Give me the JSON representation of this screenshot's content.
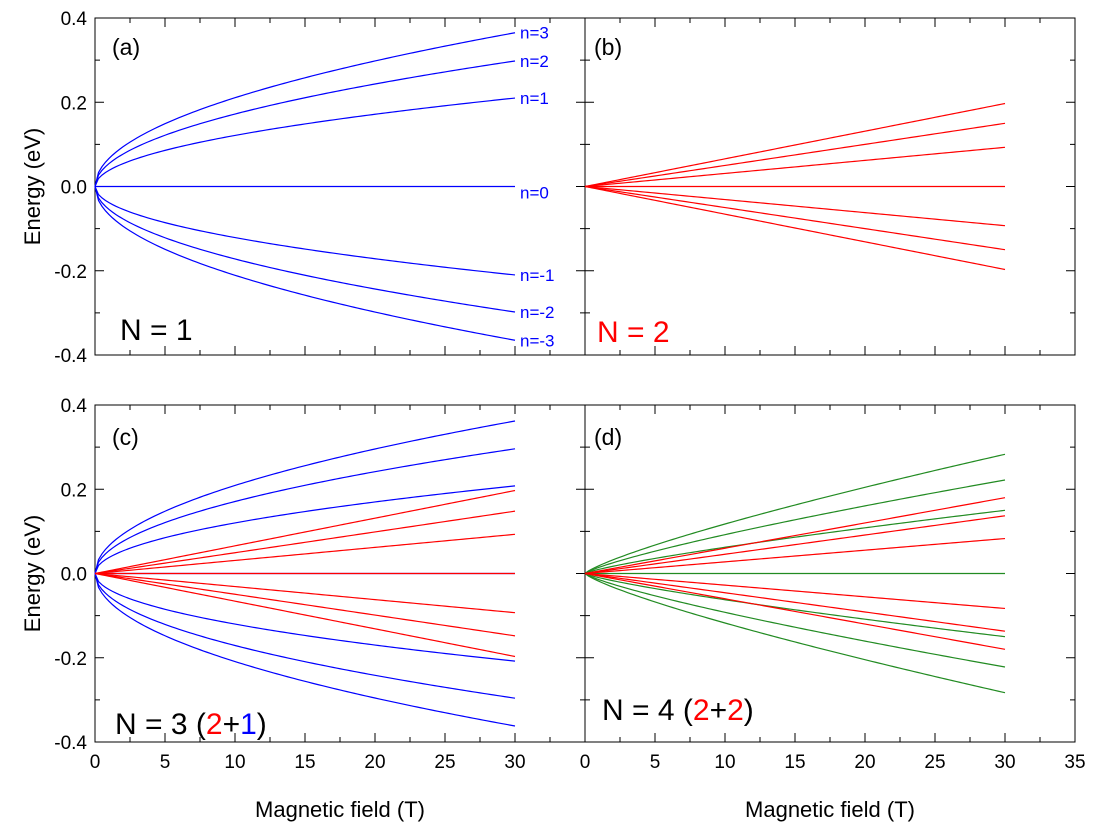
{
  "chart_data": [
    {
      "type": "line",
      "panel": "(a)",
      "annotation": [
        {
          "text": "N = 1",
          "color": "#000000"
        }
      ],
      "ylabel": "Energy (eV)",
      "xlabel": "",
      "xlim": [
        0,
        35
      ],
      "ylim": [
        -0.4,
        0.4
      ],
      "x_ticks": [
        0,
        5,
        10,
        15,
        20,
        25,
        30,
        35
      ],
      "y_ticks": [
        "0.4",
        "0.2",
        "0.0",
        "-0.2",
        "-0.4"
      ],
      "x_tick_labels": [],
      "y_tick_labels": [
        "0.4",
        "0.2",
        "0.0",
        "-0.2",
        "-0.4"
      ],
      "series": [
        {
          "label": "n=3",
          "color": "#0000ff",
          "law": "sqrt",
          "value_at_30T": 0.365
        },
        {
          "label": "n=2",
          "color": "#0000ff",
          "law": "sqrt",
          "value_at_30T": 0.298
        },
        {
          "label": "n=1",
          "color": "#0000ff",
          "law": "sqrt",
          "value_at_30T": 0.21
        },
        {
          "label": "n=0",
          "color": "#0000ff",
          "law": "sqrt",
          "value_at_30T": 0.0
        },
        {
          "label": "n=-1",
          "color": "#0000ff",
          "law": "sqrt",
          "value_at_30T": -0.21
        },
        {
          "label": "n=-2",
          "color": "#0000ff",
          "law": "sqrt",
          "value_at_30T": -0.298
        },
        {
          "label": "n=-3",
          "color": "#0000ff",
          "law": "sqrt",
          "value_at_30T": -0.365
        }
      ]
    },
    {
      "type": "line",
      "panel": "(b)",
      "annotation": [
        {
          "text": "N = 2",
          "color": "#ff0000"
        }
      ],
      "ylabel": "",
      "xlabel": "",
      "xlim": [
        0,
        35
      ],
      "ylim": [
        -0.4,
        0.4
      ],
      "x_ticks": [
        0,
        5,
        10,
        15,
        20,
        25,
        30,
        35
      ],
      "y_ticks": [
        "0.4",
        "0.2",
        "0.0",
        "-0.2",
        "-0.4"
      ],
      "x_tick_labels": [],
      "y_tick_labels": [],
      "series": [
        {
          "color": "#ff0000",
          "law": "linear",
          "value_at_30T": 0.197
        },
        {
          "color": "#ff0000",
          "law": "linear",
          "value_at_30T": 0.15
        },
        {
          "color": "#ff0000",
          "law": "linear",
          "value_at_30T": 0.093
        },
        {
          "color": "#ff0000",
          "law": "linear",
          "value_at_30T": 0.0
        },
        {
          "color": "#ff0000",
          "law": "linear",
          "value_at_30T": -0.093
        },
        {
          "color": "#ff0000",
          "law": "linear",
          "value_at_30T": -0.15
        },
        {
          "color": "#ff0000",
          "law": "linear",
          "value_at_30T": -0.197
        }
      ]
    },
    {
      "type": "line",
      "panel": "(c)",
      "annotation": [
        {
          "text": "N = 3 (",
          "color": "#000000"
        },
        {
          "text": "2",
          "color": "#ff0000"
        },
        {
          "text": "+",
          "color": "#000000"
        },
        {
          "text": "1",
          "color": "#0000ff"
        },
        {
          "text": ")",
          "color": "#000000"
        }
      ],
      "ylabel": "Energy (eV)",
      "xlabel": "Magnetic field (T)",
      "xlim": [
        0,
        35
      ],
      "ylim": [
        -0.4,
        0.4
      ],
      "x_ticks": [
        0,
        5,
        10,
        15,
        20,
        25,
        30,
        35
      ],
      "y_ticks": [
        "0.4",
        "0.2",
        "0.0",
        "-0.2",
        "-0.4"
      ],
      "x_tick_labels": [
        "0",
        "5",
        "10",
        "15",
        "20",
        "25",
        "30"
      ],
      "y_tick_labels": [
        "0.4",
        "0.2",
        "0.0",
        "-0.2",
        "-0.4"
      ],
      "series": [
        {
          "color": "#0000ff",
          "law": "sqrt",
          "value_at_30T": 0.362
        },
        {
          "color": "#0000ff",
          "law": "sqrt",
          "value_at_30T": 0.296
        },
        {
          "color": "#0000ff",
          "law": "sqrt",
          "value_at_30T": 0.208
        },
        {
          "color": "#0000ff",
          "law": "sqrt",
          "value_at_30T": 0.0
        },
        {
          "color": "#0000ff",
          "law": "sqrt",
          "value_at_30T": -0.208
        },
        {
          "color": "#0000ff",
          "law": "sqrt",
          "value_at_30T": -0.296
        },
        {
          "color": "#0000ff",
          "law": "sqrt",
          "value_at_30T": -0.362
        },
        {
          "color": "#ff0000",
          "law": "linear",
          "value_at_30T": 0.197
        },
        {
          "color": "#ff0000",
          "law": "linear",
          "value_at_30T": 0.148
        },
        {
          "color": "#ff0000",
          "law": "linear",
          "value_at_30T": 0.093
        },
        {
          "color": "#ff0000",
          "law": "linear",
          "value_at_30T": 0.0
        },
        {
          "color": "#ff0000",
          "law": "linear",
          "value_at_30T": -0.093
        },
        {
          "color": "#ff0000",
          "law": "linear",
          "value_at_30T": -0.148
        },
        {
          "color": "#ff0000",
          "law": "linear",
          "value_at_30T": -0.197
        }
      ]
    },
    {
      "type": "line",
      "panel": "(d)",
      "annotation": [
        {
          "text": "N = 4 (",
          "color": "#000000"
        },
        {
          "text": "2",
          "color": "#ff0000"
        },
        {
          "text": "+",
          "color": "#000000"
        },
        {
          "text": "2",
          "color": "#ff0000"
        },
        {
          "text": ")",
          "color": "#000000"
        }
      ],
      "ylabel": "",
      "xlabel": "Magnetic field (T)",
      "xlim": [
        0,
        35
      ],
      "ylim": [
        -0.4,
        0.4
      ],
      "x_ticks": [
        0,
        5,
        10,
        15,
        20,
        25,
        30,
        35
      ],
      "y_ticks": [
        "0.4",
        "0.2",
        "0.0",
        "-0.2",
        "-0.4"
      ],
      "x_tick_labels": [
        "0",
        "5",
        "10",
        "15",
        "20",
        "25",
        "30",
        "35"
      ],
      "y_tick_labels": [],
      "series": [
        {
          "color": "#228b22",
          "law": "sublinear",
          "value_at_30T": 0.283
        },
        {
          "color": "#228b22",
          "law": "sublinear",
          "value_at_30T": 0.222
        },
        {
          "color": "#228b22",
          "law": "sublinear",
          "value_at_30T": 0.15
        },
        {
          "color": "#228b22",
          "law": "sublinear",
          "value_at_30T": 0.0
        },
        {
          "color": "#228b22",
          "law": "sublinear",
          "value_at_30T": -0.15
        },
        {
          "color": "#228b22",
          "law": "sublinear",
          "value_at_30T": -0.222
        },
        {
          "color": "#228b22",
          "law": "sublinear",
          "value_at_30T": -0.283
        },
        {
          "color": "#ff0000",
          "law": "linear",
          "value_at_30T": 0.18
        },
        {
          "color": "#ff0000",
          "law": "linear",
          "value_at_30T": 0.137
        },
        {
          "color": "#ff0000",
          "law": "linear",
          "value_at_30T": 0.083
        },
        {
          "color": "#ff0000",
          "law": "linear",
          "value_at_30T": -0.083
        },
        {
          "color": "#ff0000",
          "law": "linear",
          "value_at_30T": -0.137
        },
        {
          "color": "#ff0000",
          "law": "linear",
          "value_at_30T": -0.18
        }
      ]
    }
  ]
}
